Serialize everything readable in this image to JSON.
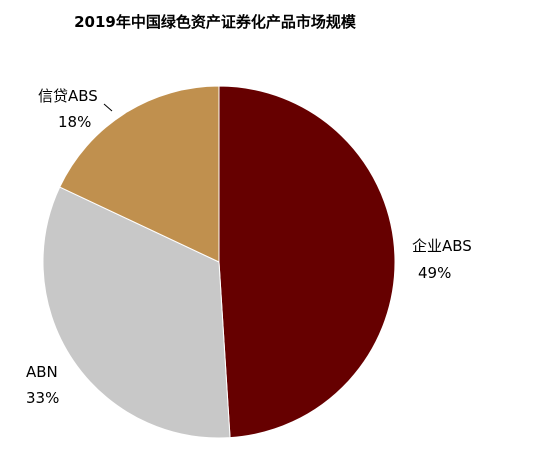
{
  "chart_data": {
    "type": "pie",
    "title": "2019年中国绿色资产证券化产品市场规模",
    "slices": [
      {
        "label": "企业ABS",
        "value": 49,
        "value_label": "49%",
        "color": "#660000"
      },
      {
        "label": "ABN",
        "value": 33,
        "value_label": "33%",
        "color": "#c8c8c8"
      },
      {
        "label": "信贷ABS",
        "value": 18,
        "value_label": "18%",
        "color": "#c0904e"
      }
    ],
    "start_angle": "12 o'clock",
    "direction": "clockwise",
    "legend": "none"
  }
}
